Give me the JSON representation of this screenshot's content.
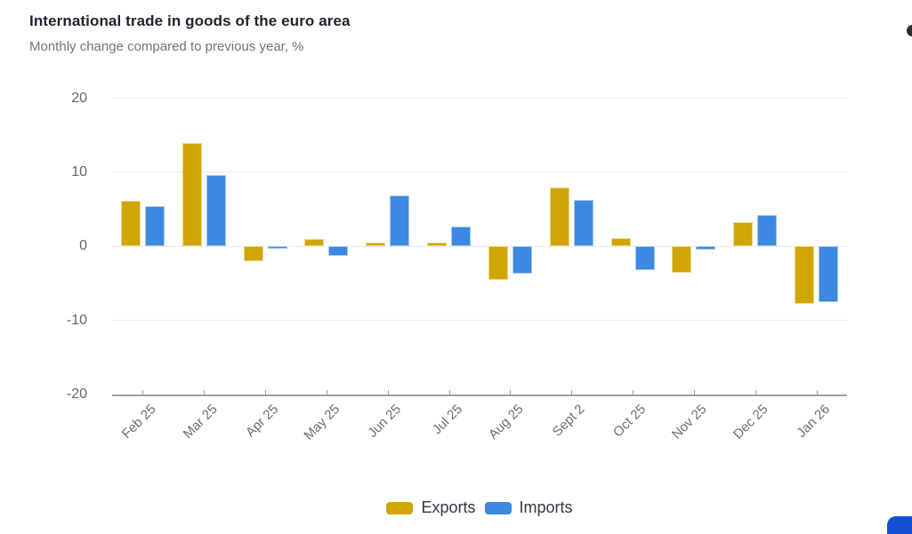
{
  "chart_data": {
    "type": "bar",
    "title": "International trade in goods of the euro area",
    "subtitle": "Monthly change compared to previous year, %",
    "categories": [
      "Feb 25",
      "Mar 25",
      "Apr 25",
      "May 25",
      "Jun 25",
      "Jul 25",
      "Aug 25",
      "Sept 2",
      "Oct 25",
      "Nov 25",
      "Dec 25",
      "Jan 26"
    ],
    "series": [
      {
        "name": "Exports",
        "color": "#d1a503",
        "values": [
          6.2,
          14.0,
          -2.0,
          1.0,
          0.5,
          0.5,
          -4.5,
          7.9,
          1.1,
          -3.5,
          3.3,
          -7.8
        ]
      },
      {
        "name": "Imports",
        "color": "#3d88e0",
        "values": [
          5.4,
          9.6,
          -0.3,
          -1.3,
          6.9,
          2.7,
          -3.7,
          6.3,
          -3.2,
          -0.4,
          4.3,
          -7.5
        ]
      }
    ],
    "xlabel": "",
    "ylabel": "",
    "ylim": [
      -20,
      20
    ],
    "yticks": [
      20,
      10,
      0,
      -10,
      -20
    ],
    "grid": true,
    "legend_position": "bottom"
  },
  "colors": {
    "gridline": "#e7ecf4",
    "axis_line": "#9aa0a6",
    "corner_dot": "#262c3c",
    "corner_button": "#1550d2"
  }
}
